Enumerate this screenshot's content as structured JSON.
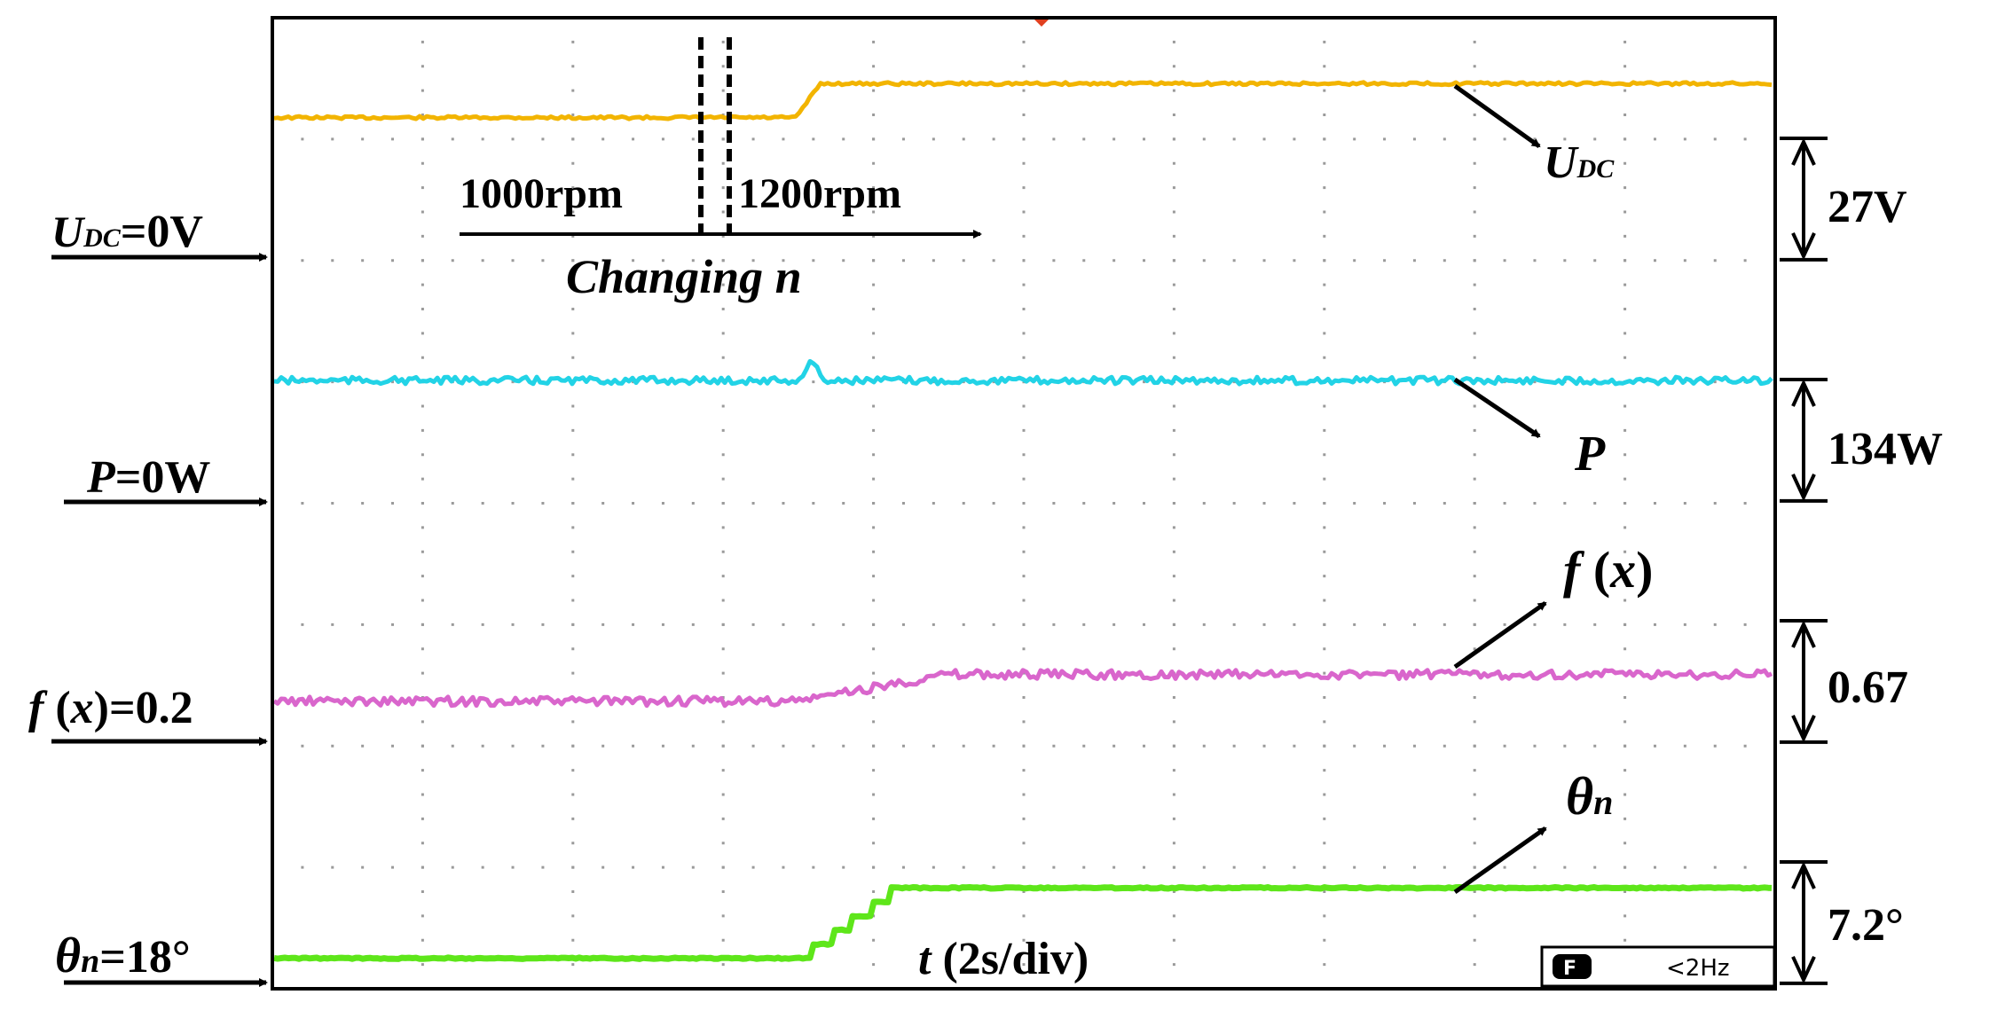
{
  "chart_data": {
    "type": "line",
    "grid": true,
    "x": {
      "label_var": "t",
      "label_rest": " (2s/div)",
      "range_s": [
        0,
        20
      ]
    },
    "series": [
      {
        "name": "UDC",
        "color": "#f2b400",
        "zero_label": "=0V",
        "scale_label": "27V",
        "divisions_above_zero": [
          1.15,
          1.43
        ]
      },
      {
        "name": "P",
        "color": "#22d3e6",
        "zero_label": "=0W",
        "scale_label": "134W",
        "divisions_above_zero": [
          1.0,
          1.0
        ]
      },
      {
        "name": "f(x)",
        "color": "#d966cc",
        "zero_label": "=0.2",
        "scale_label": "0.67",
        "divisions_above_zero": [
          0.33,
          0.55
        ]
      },
      {
        "name": "θn",
        "color": "#5ee61a",
        "zero_label": "=18°",
        "scale_label": "7.2°",
        "divisions_above_zero": [
          0.2,
          0.78
        ]
      }
    ],
    "annotations": {
      "speed_before": "1000rpm",
      "speed_after": "1200rpm",
      "change_label": "Changing n",
      "change_time_s": 7.2
    },
    "scope_badge": {
      "letter": "F",
      "text": "<2Hz"
    }
  }
}
